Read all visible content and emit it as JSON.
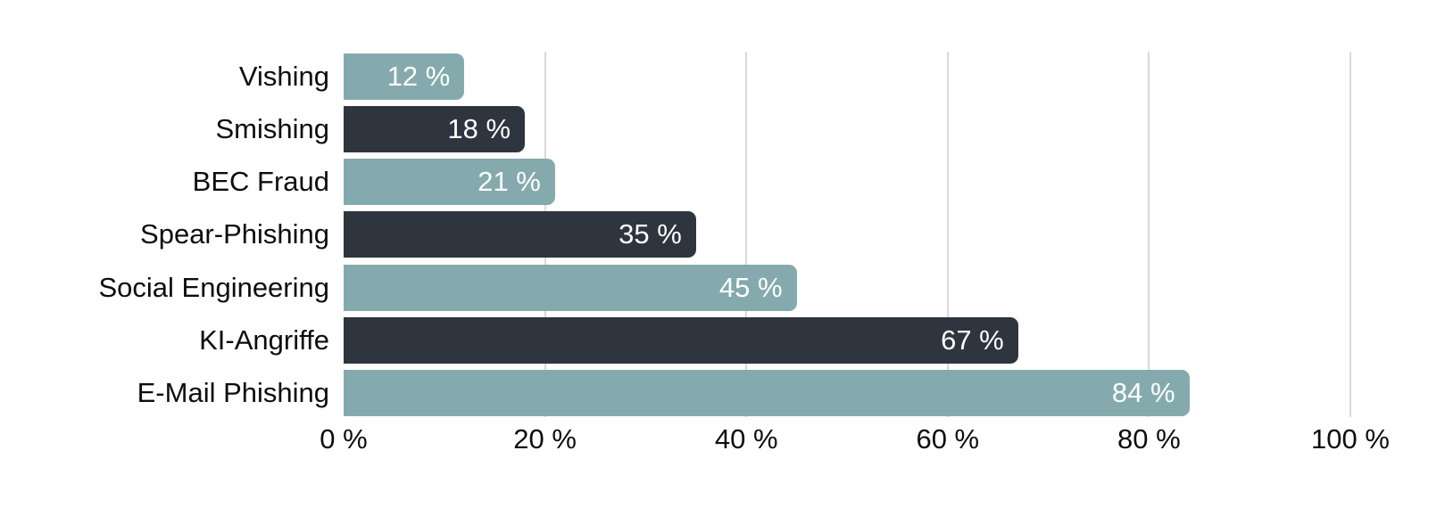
{
  "chart_data": {
    "type": "bar",
    "orientation": "horizontal",
    "title": "",
    "xlabel": "",
    "ylabel": "",
    "xlim": [
      0,
      100
    ],
    "grid": "vertical-lines",
    "legend": "none",
    "categories": [
      "Vishing",
      "Smishing",
      "BEC Fraud",
      "Spear-Phishing",
      "Social Engineering",
      "KI-Angriffe",
      "E-Mail Phishing"
    ],
    "values": [
      12,
      18,
      21,
      35,
      45,
      67,
      84
    ],
    "items": [
      {
        "label": "Vishing",
        "value": 12,
        "display": "12 %",
        "color": "#85aaad"
      },
      {
        "label": "Smishing",
        "value": 18,
        "display": "18 %",
        "color": "#2f353f"
      },
      {
        "label": "BEC Fraud",
        "value": 21,
        "display": "21 %",
        "color": "#85aaad"
      },
      {
        "label": "Spear-Phishing",
        "value": 35,
        "display": "35 %",
        "color": "#2f353f"
      },
      {
        "label": "Social Engineering",
        "value": 45,
        "display": "45 %",
        "color": "#85aaad"
      },
      {
        "label": "KI-Angriffe",
        "value": 67,
        "display": "67 %",
        "color": "#2f353f"
      },
      {
        "label": "E-Mail Phishing",
        "value": 84,
        "display": "84 %",
        "color": "#85aaad"
      }
    ],
    "x_ticks": [
      {
        "value": 0,
        "label": "0 %",
        "show_line": false
      },
      {
        "value": 20,
        "label": "20 %",
        "show_line": true
      },
      {
        "value": 40,
        "label": "40 %",
        "show_line": true
      },
      {
        "value": 60,
        "label": "60 %",
        "show_line": true
      },
      {
        "value": 80,
        "label": "80 %",
        "show_line": true
      },
      {
        "value": 100,
        "label": "100 %",
        "show_line": true
      }
    ],
    "colors": {
      "series_teal": "#85aaad",
      "series_dark": "#2f353f",
      "gridline": "#d9d9d9",
      "value_text": "#ffffff",
      "label_text": "#0d0d0d",
      "background": "#ffffff"
    }
  }
}
